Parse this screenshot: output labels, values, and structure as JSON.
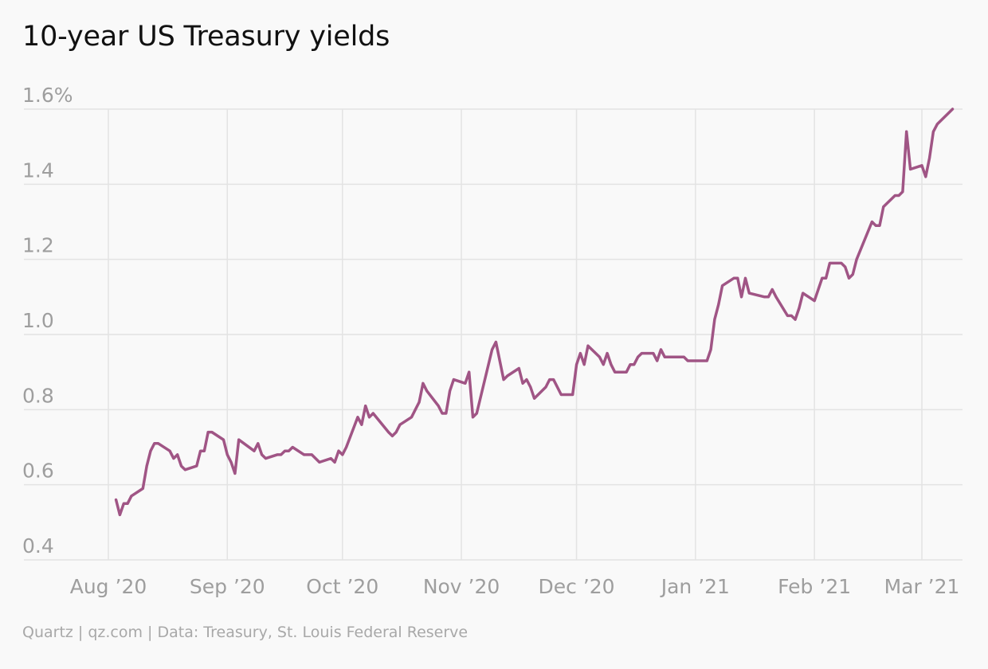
{
  "title": "10-year US Treasury yields",
  "source": "Quartz | qz.com | Data: Treasury, St. Louis Federal Reserve",
  "colors": {
    "line": "#a05585",
    "grid": "#e3e3e3",
    "axis_text": "#9e9e9e",
    "background": "#f9f9f9"
  },
  "chart_data": {
    "type": "line",
    "title": "10-year US Treasury yields",
    "ylim": [
      0.4,
      1.6
    ],
    "y_ticks": [
      {
        "value": 1.6,
        "label": "1.6%"
      },
      {
        "value": 1.4,
        "label": "1.4"
      },
      {
        "value": 1.2,
        "label": "1.2"
      },
      {
        "value": 1.0,
        "label": "1.0"
      },
      {
        "value": 0.8,
        "label": "0.8"
      },
      {
        "value": 0.6,
        "label": "0.6"
      },
      {
        "value": 0.4,
        "label": "0.4"
      }
    ],
    "x_ticks": [
      {
        "date": "2020-08-01",
        "label": "Aug ’20"
      },
      {
        "date": "2020-09-01",
        "label": "Sep ’20"
      },
      {
        "date": "2020-10-01",
        "label": "Oct ’20"
      },
      {
        "date": "2020-11-01",
        "label": "Nov ’20"
      },
      {
        "date": "2020-12-01",
        "label": "Dec ’20"
      },
      {
        "date": "2021-01-01",
        "label": "Jan ’21"
      },
      {
        "date": "2021-02-01",
        "label": "Feb ’21"
      },
      {
        "date": "2021-03-01",
        "label": "Mar ’21"
      }
    ],
    "grid": true,
    "series": [
      {
        "color": "#a05585",
        "points": [
          [
            "2020-08-03",
            0.56
          ],
          [
            "2020-08-04",
            0.52
          ],
          [
            "2020-08-05",
            0.55
          ],
          [
            "2020-08-06",
            0.55
          ],
          [
            "2020-08-07",
            0.57
          ],
          [
            "2020-08-10",
            0.59
          ],
          [
            "2020-08-11",
            0.65
          ],
          [
            "2020-08-12",
            0.69
          ],
          [
            "2020-08-13",
            0.71
          ],
          [
            "2020-08-14",
            0.71
          ],
          [
            "2020-08-17",
            0.69
          ],
          [
            "2020-08-18",
            0.67
          ],
          [
            "2020-08-19",
            0.68
          ],
          [
            "2020-08-20",
            0.65
          ],
          [
            "2020-08-21",
            0.64
          ],
          [
            "2020-08-24",
            0.65
          ],
          [
            "2020-08-25",
            0.69
          ],
          [
            "2020-08-26",
            0.69
          ],
          [
            "2020-08-27",
            0.74
          ],
          [
            "2020-08-28",
            0.74
          ],
          [
            "2020-08-31",
            0.72
          ],
          [
            "2020-09-01",
            0.68
          ],
          [
            "2020-09-02",
            0.66
          ],
          [
            "2020-09-03",
            0.63
          ],
          [
            "2020-09-04",
            0.72
          ],
          [
            "2020-09-08",
            0.69
          ],
          [
            "2020-09-09",
            0.71
          ],
          [
            "2020-09-10",
            0.68
          ],
          [
            "2020-09-11",
            0.67
          ],
          [
            "2020-09-14",
            0.68
          ],
          [
            "2020-09-15",
            0.68
          ],
          [
            "2020-09-16",
            0.69
          ],
          [
            "2020-09-17",
            0.69
          ],
          [
            "2020-09-18",
            0.7
          ],
          [
            "2020-09-21",
            0.68
          ],
          [
            "2020-09-22",
            0.68
          ],
          [
            "2020-09-23",
            0.68
          ],
          [
            "2020-09-24",
            0.67
          ],
          [
            "2020-09-25",
            0.66
          ],
          [
            "2020-09-28",
            0.67
          ],
          [
            "2020-09-29",
            0.66
          ],
          [
            "2020-09-30",
            0.69
          ],
          [
            "2020-10-01",
            0.68
          ],
          [
            "2020-10-02",
            0.7
          ],
          [
            "2020-10-05",
            0.78
          ],
          [
            "2020-10-06",
            0.76
          ],
          [
            "2020-10-07",
            0.81
          ],
          [
            "2020-10-08",
            0.78
          ],
          [
            "2020-10-09",
            0.79
          ],
          [
            "2020-10-13",
            0.74
          ],
          [
            "2020-10-14",
            0.73
          ],
          [
            "2020-10-15",
            0.74
          ],
          [
            "2020-10-16",
            0.76
          ],
          [
            "2020-10-19",
            0.78
          ],
          [
            "2020-10-20",
            0.8
          ],
          [
            "2020-10-21",
            0.82
          ],
          [
            "2020-10-22",
            0.87
          ],
          [
            "2020-10-23",
            0.85
          ],
          [
            "2020-10-26",
            0.81
          ],
          [
            "2020-10-27",
            0.79
          ],
          [
            "2020-10-28",
            0.79
          ],
          [
            "2020-10-29",
            0.85
          ],
          [
            "2020-10-30",
            0.88
          ],
          [
            "2020-11-02",
            0.87
          ],
          [
            "2020-11-03",
            0.9
          ],
          [
            "2020-11-04",
            0.78
          ],
          [
            "2020-11-05",
            0.79
          ],
          [
            "2020-11-09",
            0.96
          ],
          [
            "2020-11-10",
            0.98
          ],
          [
            "2020-11-12",
            0.88
          ],
          [
            "2020-11-13",
            0.89
          ],
          [
            "2020-11-16",
            0.91
          ],
          [
            "2020-11-17",
            0.87
          ],
          [
            "2020-11-18",
            0.88
          ],
          [
            "2020-11-19",
            0.86
          ],
          [
            "2020-11-20",
            0.83
          ],
          [
            "2020-11-23",
            0.86
          ],
          [
            "2020-11-24",
            0.88
          ],
          [
            "2020-11-25",
            0.88
          ],
          [
            "2020-11-27",
            0.84
          ],
          [
            "2020-11-30",
            0.84
          ],
          [
            "2020-12-01",
            0.92
          ],
          [
            "2020-12-02",
            0.95
          ],
          [
            "2020-12-03",
            0.92
          ],
          [
            "2020-12-04",
            0.97
          ],
          [
            "2020-12-07",
            0.94
          ],
          [
            "2020-12-08",
            0.92
          ],
          [
            "2020-12-09",
            0.95
          ],
          [
            "2020-12-10",
            0.92
          ],
          [
            "2020-12-11",
            0.9
          ],
          [
            "2020-12-14",
            0.9
          ],
          [
            "2020-12-15",
            0.92
          ],
          [
            "2020-12-16",
            0.92
          ],
          [
            "2020-12-17",
            0.94
          ],
          [
            "2020-12-18",
            0.95
          ],
          [
            "2020-12-21",
            0.95
          ],
          [
            "2020-12-22",
            0.93
          ],
          [
            "2020-12-23",
            0.96
          ],
          [
            "2020-12-24",
            0.94
          ],
          [
            "2020-12-28",
            0.94
          ],
          [
            "2020-12-29",
            0.94
          ],
          [
            "2020-12-30",
            0.93
          ],
          [
            "2020-12-31",
            0.93
          ],
          [
            "2021-01-04",
            0.93
          ],
          [
            "2021-01-05",
            0.96
          ],
          [
            "2021-01-06",
            1.04
          ],
          [
            "2021-01-07",
            1.08
          ],
          [
            "2021-01-08",
            1.13
          ],
          [
            "2021-01-11",
            1.15
          ],
          [
            "2021-01-12",
            1.15
          ],
          [
            "2021-01-13",
            1.1
          ],
          [
            "2021-01-14",
            1.15
          ],
          [
            "2021-01-15",
            1.11
          ],
          [
            "2021-01-19",
            1.1
          ],
          [
            "2021-01-20",
            1.1
          ],
          [
            "2021-01-21",
            1.12
          ],
          [
            "2021-01-22",
            1.1
          ],
          [
            "2021-01-25",
            1.05
          ],
          [
            "2021-01-26",
            1.05
          ],
          [
            "2021-01-27",
            1.04
          ],
          [
            "2021-01-28",
            1.07
          ],
          [
            "2021-01-29",
            1.11
          ],
          [
            "2021-02-01",
            1.09
          ],
          [
            "2021-02-02",
            1.12
          ],
          [
            "2021-02-03",
            1.15
          ],
          [
            "2021-02-04",
            1.15
          ],
          [
            "2021-02-05",
            1.19
          ],
          [
            "2021-02-08",
            1.19
          ],
          [
            "2021-02-09",
            1.18
          ],
          [
            "2021-02-10",
            1.15
          ],
          [
            "2021-02-11",
            1.16
          ],
          [
            "2021-02-12",
            1.2
          ],
          [
            "2021-02-16",
            1.3
          ],
          [
            "2021-02-17",
            1.29
          ],
          [
            "2021-02-18",
            1.29
          ],
          [
            "2021-02-19",
            1.34
          ],
          [
            "2021-02-22",
            1.37
          ],
          [
            "2021-02-23",
            1.37
          ],
          [
            "2021-02-24",
            1.38
          ],
          [
            "2021-02-25",
            1.54
          ],
          [
            "2021-02-26",
            1.44
          ],
          [
            "2021-03-01",
            1.45
          ],
          [
            "2021-03-02",
            1.42
          ],
          [
            "2021-03-03",
            1.47
          ],
          [
            "2021-03-04",
            1.54
          ],
          [
            "2021-03-05",
            1.56
          ],
          [
            "2021-03-08",
            1.59
          ],
          [
            "2021-03-09",
            1.6
          ]
        ]
      }
    ]
  }
}
